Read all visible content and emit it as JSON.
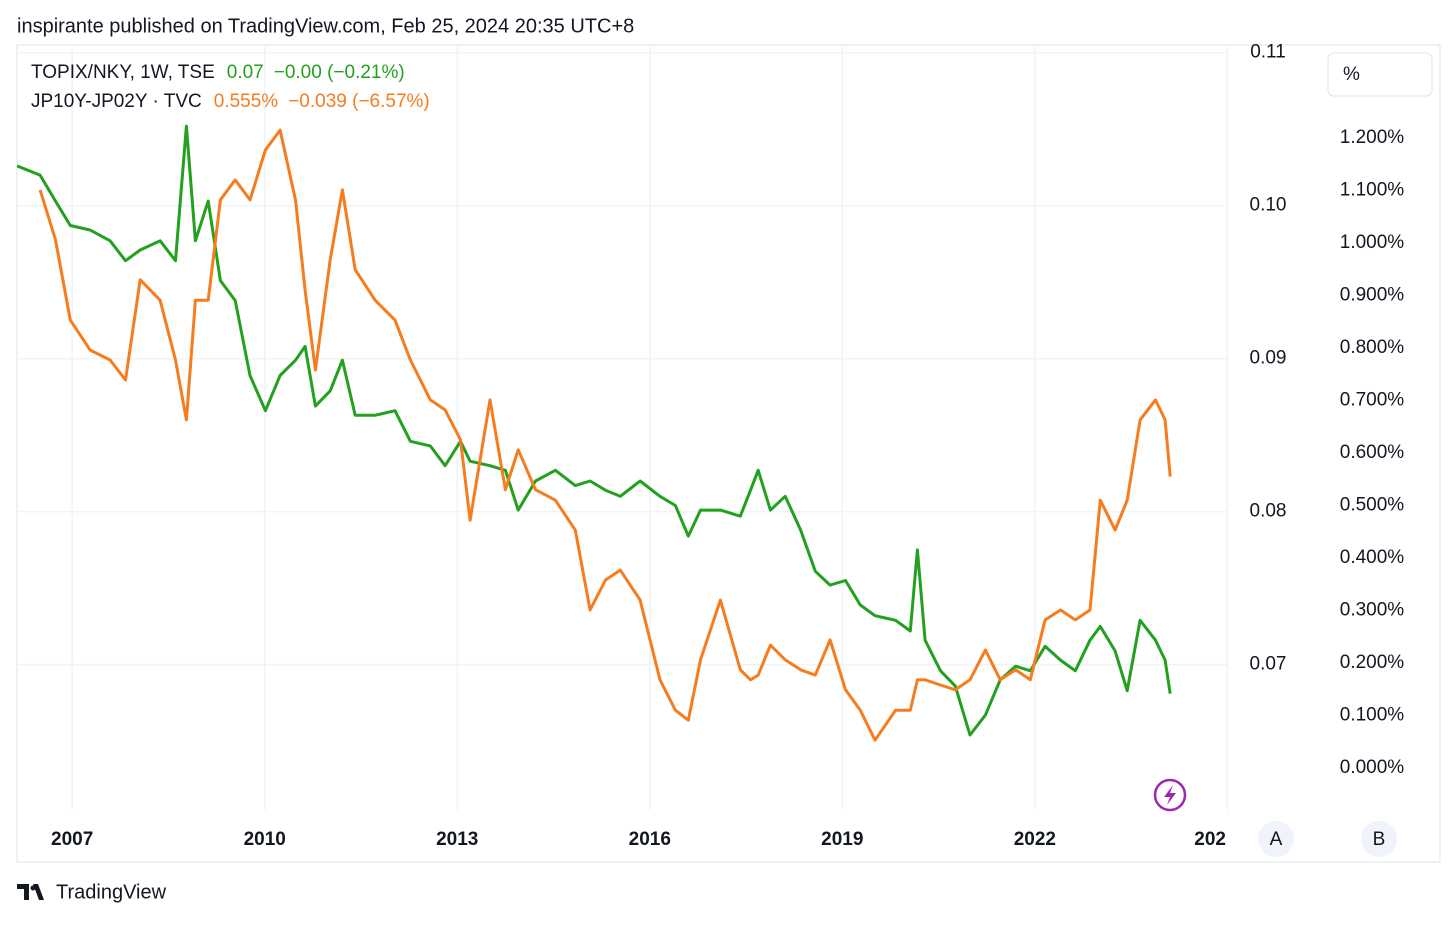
{
  "header": "inspirante published on TradingView.com, Feb 25, 2024 20:35 UTC+8",
  "brand": "TradingView",
  "percent_button": "%",
  "scale_buttons": [
    "A",
    "B"
  ],
  "chart_data": {
    "type": "line",
    "x": [
      2006.14,
      2006.5,
      2006.74,
      2006.97,
      2007.28,
      2007.59,
      2007.83,
      2008.06,
      2008.37,
      2008.61,
      2008.78,
      2008.92,
      2009.12,
      2009.31,
      2009.54,
      2009.77,
      2010.01,
      2010.24,
      2010.48,
      2010.63,
      2010.79,
      2011.02,
      2011.21,
      2011.41,
      2011.72,
      2012.03,
      2012.27,
      2012.58,
      2012.81,
      2013.05,
      2013.2,
      2013.51,
      2013.75,
      2013.95,
      2014.22,
      2014.53,
      2014.84,
      2015.07,
      2015.31,
      2015.54,
      2015.85,
      2016.16,
      2016.4,
      2016.6,
      2016.79,
      2017.1,
      2017.41,
      2017.57,
      2017.69,
      2017.88,
      2018.11,
      2018.35,
      2018.58,
      2018.81,
      2019.05,
      2019.28,
      2019.51,
      2019.83,
      2020.06,
      2020.17,
      2020.29,
      2020.53,
      2020.76,
      2020.99,
      2021.23,
      2021.46,
      2021.7,
      2021.93,
      2022.16,
      2022.4,
      2022.63,
      2022.86,
      2023.02,
      2023.25,
      2023.44,
      2023.64,
      2023.88,
      2024.03,
      2024.11
    ],
    "series": [
      {
        "name": "TOPIX/NKY, 1W, TSE",
        "last_label": "0.07",
        "change_label": "−0.00 (−0.21%)",
        "color": "#22a01e",
        "values": [
          0.1026,
          0.102,
          0.1003,
          0.0987,
          0.0984,
          0.0977,
          0.0964,
          0.0971,
          0.0977,
          0.0964,
          0.1052,
          0.0977,
          0.1003,
          0.0951,
          0.0938,
          0.0889,
          0.0866,
          0.0889,
          0.0899,
          0.0908,
          0.0869,
          0.0879,
          0.0899,
          0.0863,
          0.0863,
          0.0866,
          0.0846,
          0.0843,
          0.083,
          0.0846,
          0.0833,
          0.083,
          0.0827,
          0.0801,
          0.082,
          0.0827,
          0.0817,
          0.082,
          0.0814,
          0.081,
          0.082,
          0.081,
          0.0804,
          0.0784,
          0.0801,
          0.0801,
          0.0797,
          0.0814,
          0.0827,
          0.0801,
          0.081,
          0.0788,
          0.0761,
          0.0752,
          0.0755,
          0.0739,
          0.0732,
          0.0729,
          0.0722,
          0.0775,
          0.0716,
          0.0696,
          0.0686,
          0.0654,
          0.0667,
          0.069,
          0.0699,
          0.0696,
          0.0712,
          0.0703,
          0.0696,
          0.0716,
          0.0725,
          0.0709,
          0.0683,
          0.0729,
          0.0716,
          0.0703,
          0.0681
        ]
      },
      {
        "name": "JP10Y-JP02Y · TVC",
        "last_label": "0.555%",
        "change_label": "−0.039 (−6.57%)",
        "color": "#f57c1f",
        "axis": "y2",
        "values": [
          null,
          1.101,
          1.006,
          0.853,
          0.796,
          0.777,
          0.739,
          0.93,
          0.891,
          0.777,
          0.663,
          0.891,
          0.891,
          1.082,
          1.12,
          1.082,
          1.177,
          1.215,
          1.082,
          0.91,
          0.758,
          0.968,
          1.101,
          0.949,
          0.891,
          0.853,
          0.777,
          0.701,
          0.682,
          0.625,
          0.472,
          0.701,
          0.53,
          0.606,
          0.53,
          0.51,
          0.453,
          0.301,
          0.358,
          0.377,
          0.32,
          0.168,
          0.11,
          0.091,
          0.206,
          0.32,
          0.187,
          0.168,
          0.177,
          0.234,
          0.206,
          0.187,
          0.177,
          0.244,
          0.149,
          0.11,
          0.053,
          0.11,
          0.11,
          0.168,
          0.168,
          0.158,
          0.149,
          0.168,
          0.225,
          0.168,
          0.187,
          0.168,
          0.282,
          0.301,
          0.282,
          0.301,
          0.51,
          0.453,
          0.51,
          0.663,
          0.701,
          0.663,
          0.555
        ]
      }
    ],
    "xlim": [
      2006.14,
      2025.01
    ],
    "xticks": [
      2007,
      2010,
      2013,
      2016,
      2019,
      2022,
      {
        "value": 2025,
        "label": "202"
      }
    ],
    "ylim": [
      0.0605,
      0.1105
    ],
    "yticks": [
      0.07,
      0.08,
      0.09,
      {
        "value": 0.1,
        "label": "0.10"
      },
      0.11
    ],
    "y2lim": [
      -0.08,
      1.377
    ],
    "y2ticks": [
      {
        "value": 0,
        "label": "0.000%"
      },
      {
        "value": 0.1,
        "label": "0.100%"
      },
      {
        "value": 0.2,
        "label": "0.200%"
      },
      {
        "value": 0.3,
        "label": "0.300%"
      },
      {
        "value": 0.4,
        "label": "0.400%"
      },
      {
        "value": 0.5,
        "label": "0.500%"
      },
      {
        "value": 0.6,
        "label": "0.600%"
      },
      {
        "value": 0.7,
        "label": "0.700%"
      },
      {
        "value": 0.8,
        "label": "0.800%"
      },
      {
        "value": 0.9,
        "label": "0.900%"
      },
      {
        "value": 1,
        "label": "1.000%"
      },
      {
        "value": 1.1,
        "label": "1.100%"
      },
      {
        "value": 1.2,
        "label": "1.200%"
      }
    ],
    "grid": true
  }
}
